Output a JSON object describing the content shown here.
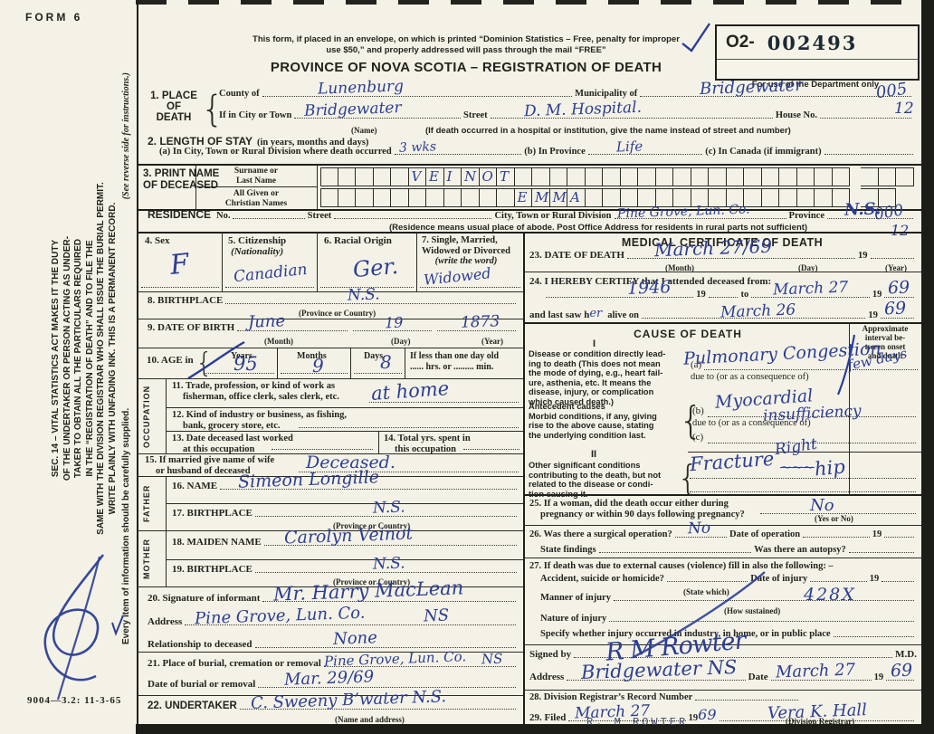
{
  "form": {
    "form_no": "FORM 6",
    "footer_code": "9004—3.2: 11-3-65",
    "envelope_note_1": "This form, if placed in an envelope, on which is printed “Dominion Statistics – Free, penalty for improper",
    "envelope_note_2": "use $50,” and properly addressed will pass through the mail “FREE”",
    "title": "PROVINCE OF NOVA SCOTIA – REGISTRATION OF DEATH",
    "ink_blue": "#2c3e94",
    "paper": "#f4f2e6"
  },
  "dept_box": {
    "prefix": "O2-",
    "number": "002493",
    "caption": "For use of the Department only",
    "code_top": "005",
    "code_top2": "12",
    "code_res": "000",
    "code_res2": "12"
  },
  "sidebar": {
    "line1": "SEC. 14 – VITAL STATISTICS ACT MAKES IT THE DUTY",
    "line2": "OF THE UNDERTAKER OR PERSON ACTING AS UNDER-",
    "line3": "TAKER TO OBTAIN ALL THE PARTICULARS REQUIRED",
    "line4": "IN THE “REGISTRATION OF DEATH” AND TO FILE THE",
    "line5": "SAME WITH THE DIVISION REGISTRAR WHO SHALL ISSUE THE BURIAL PERMIT.",
    "line6": "WRITE PLAINLY WITH UNFADING INK. THIS IS A PERMANENT RECORD.",
    "line7": "Every item of information should be carefully supplied.",
    "line8": "(See reverse side for instructions.)"
  },
  "s1": {
    "no_label": "1. PLACE",
    "no_label2": "OF",
    "no_label3": "DEATH",
    "county_label": "County of",
    "county_value": "Lunenburg",
    "municipality_label": "Municipality of",
    "municipality_value": "Bridgewater",
    "city_label": "If in City or Town",
    "city_value": "Bridgewater",
    "city_caption": "(Name)",
    "street_label": "Street",
    "street_value": "D. M. Hospital.",
    "street_caption": "(If death occurred in a hospital or institution, give the name instead of street and number)",
    "house_label": "House No."
  },
  "s2": {
    "label": "2. LENGTH OF STAY",
    "label_paren": "(in years, months and days)",
    "a_label": "(a) In City, Town or Rural Division where death occurred",
    "a_value": "3 wks",
    "b_label": "(b) In Province",
    "b_value": "Life",
    "c_label": "(c) In Canada (if immigrant)"
  },
  "s3": {
    "label1": "3. PRINT NAME",
    "label2": "OF DECEASED",
    "surname_label1": "Surname or",
    "surname_label2": "Last Name",
    "given_label1": "All Given or",
    "given_label2": "Christian Names",
    "surname_value": "VEINOT",
    "surname_start": 5,
    "given_value": "EMMA",
    "given_start": 11,
    "cells_main": 30
  },
  "residence": {
    "label": "RESIDENCE",
    "no_label": "No.",
    "street_label": "Street",
    "city_label": "City, Town or Rural Division",
    "city_value": "Pine Grove, Lun. Co.",
    "province_label": "Province",
    "province_value": "N.S.",
    "caption": "(Residence means usual place of abode. Post Office Address for residents in rural parts not sufficient)"
  },
  "s4": {
    "label": "4. Sex",
    "value": "F"
  },
  "s5": {
    "label": "5. Citizenship",
    "label2": "(Nationality)",
    "value": "Canadian"
  },
  "s6": {
    "label": "6. Racial Origin",
    "value": "Ger."
  },
  "s7": {
    "label": "7. Single, Married,",
    "label2": "Widowed or Divorced",
    "label3": "(write the word)",
    "value": "Widowed"
  },
  "s8": {
    "label": "8. BIRTHPLACE",
    "value": "N.S.",
    "caption": "(Province or Country)"
  },
  "s9": {
    "label": "9. DATE OF BIRTH",
    "month": "June",
    "day": "19",
    "year": "1873",
    "cap_month": "(Month)",
    "cap_day": "(Day)",
    "cap_year": "(Year)"
  },
  "s10": {
    "label": "10. AGE in",
    "years_label": "Years",
    "months_label": "Months",
    "days_label": "Days",
    "years": "95",
    "months": "9",
    "days": "8",
    "less_label": "If less than one day old",
    "less_label2": "hrs. or",
    "less_label3": "min."
  },
  "occupation": {
    "side_label": "OCCUPATION",
    "s11a": "11. Trade, profession, or kind of work as",
    "s11b": "fisherman, office clerk, sales clerk, etc.",
    "s11_value": "at home",
    "s12a": "12. Kind of industry or business, as fishing,",
    "s12b": "bank, grocery store, etc.",
    "s13a": "13. Date deceased last worked",
    "s13b": "at this occupation",
    "s14a": "14. Total yrs. spent in",
    "s14b": "this occupation"
  },
  "s15": {
    "label1": "15. If married give name of wife",
    "label2": "or husband of deceased",
    "value": "Deceased."
  },
  "father": {
    "side_label": "FATHER",
    "name_label": "16. NAME",
    "name_value": "Simeon Longille",
    "bp_label": "17. BIRTHPLACE",
    "bp_value": "N.S.",
    "bp_caption": "(Province or Country)"
  },
  "mother": {
    "side_label": "MOTHER",
    "name_label": "18. MAIDEN NAME",
    "name_value": "Carolyn Veinot",
    "bp_label": "19. BIRTHPLACE",
    "bp_value": "N.S.",
    "bp_caption": "(Province or Country)"
  },
  "s20": {
    "label": "20. Signature of informant",
    "value": "Mr. Harry MacLean",
    "addr_label": "Address",
    "addr_value": "Pine Grove, Lun. Co.",
    "addr_value2": "NS",
    "rel_label": "Relationship to deceased",
    "rel_value": "None"
  },
  "s21": {
    "label": "21. Place of burial, cremation or removal",
    "value": "Pine Grove, Lun. Co.",
    "value2": "NS",
    "date_label": "Date of burial or removal",
    "date_value": "Mar. 29/69"
  },
  "s22": {
    "label": "22. UNDERTAKER",
    "value": "C. Sweeny  B’water N.S.",
    "caption": "(Name and address)"
  },
  "medical": {
    "header": "MEDICAL CERTIFICATE OF DEATH",
    "s23": {
      "label": "23. DATE OF DEATH",
      "value": "March 27/69",
      "cap_month": "(Month)",
      "cap_day": "(Day)",
      "year_pre": "19",
      "cap_year": "(Year)"
    },
    "s24": {
      "label": "24. I HEREBY CERTIFY that I attended deceased from:",
      "from_value": "1946",
      "from_year": "19",
      "to_label": "to",
      "to_value": "March 27",
      "to_year_pre": "19",
      "to_year": "69",
      "saw_label": "and last saw h",
      "saw_er": "er",
      "saw_label2": "alive on",
      "saw_value": "March 26",
      "saw_year_pre": "19",
      "saw_year": "69"
    },
    "cause": {
      "header": "CAUSE OF DEATH",
      "interval1": "Approximate",
      "interval2": "interval be-",
      "interval3": "tween onset",
      "interval4": "and death",
      "part1": "I",
      "disease1": "Disease or condition directly lead-",
      "disease2": "ing to death (This does not mean",
      "disease3": "the mode of dying, e.g., heart fail-",
      "disease4": "ure, asthenia, etc. It means the",
      "disease5": "disease, injury, or complication",
      "disease6": "which caused death.)",
      "ante1": "Antecedent causes",
      "ante2": "Morbid conditions, if any, giving",
      "ante3": "rise to the above cause, stating",
      "ante4": "the underlying condition last.",
      "a_prefix": "(a)",
      "a_value": "Pulmonary Congestion",
      "a_interval": "few days",
      "due_to_1": "due to (or as a consequence of)",
      "b_prefix": "(b)",
      "b_value1": "Myocardial",
      "b_value2": "insufficiency",
      "due_to_2": "due to (or as a consequence of)",
      "c_prefix": "(c)",
      "part2": "II",
      "other1": "Other significant conditions",
      "other2": "contributing to the death, but not",
      "other3": "related to the disease or condi-",
      "other4": "tion causing it.",
      "other_value1": "Fracture",
      "other_value_above": "Right",
      "other_value2": "hip"
    },
    "s25": {
      "label1": "25. If a woman, did the death occur either during",
      "label2": "pregnancy or within 90 days following pregnancy?",
      "value": "No",
      "caption": "(Yes or No)"
    },
    "s26": {
      "label": "26. Was there a surgical operation?",
      "value": "No",
      "date_label": "Date of operation",
      "year_pre": "19",
      "findings_label": "State findings",
      "autopsy_label": "Was there an autopsy?"
    },
    "s27": {
      "label": "27. If death was due to external causes (violence) fill in also the following: –",
      "accident_label": "Accident, suicide or homicide?",
      "state_which": "(State which)",
      "injury_date_label": "Date of injury",
      "year_pre": "19",
      "manner_label": "Manner of injury",
      "manner_caption": "(How sustained)",
      "manner_value": "428X",
      "nature_label": "Nature of injury",
      "specify_label": "Specify whether injury occurred in industry, in home, or in public place"
    },
    "signed": {
      "label": "Signed by",
      "signature": "R M Rowter",
      "md": "M.D.",
      "addr_label": "Address",
      "addr_value": "Bridgewater NS",
      "date_label": "Date",
      "date_value": "March 27",
      "year_pre": "19",
      "year": "69"
    },
    "s28": {
      "label": "28. Division Registrar’s Record Number"
    },
    "s29": {
      "label": "29. Filed",
      "date_value": "March 27",
      "year_pre": "19",
      "year": "69",
      "registrar_value": "Vera K. Hall",
      "caption": "(Division Registrar)",
      "pencil_note": "R. M  ROWTER"
    }
  }
}
